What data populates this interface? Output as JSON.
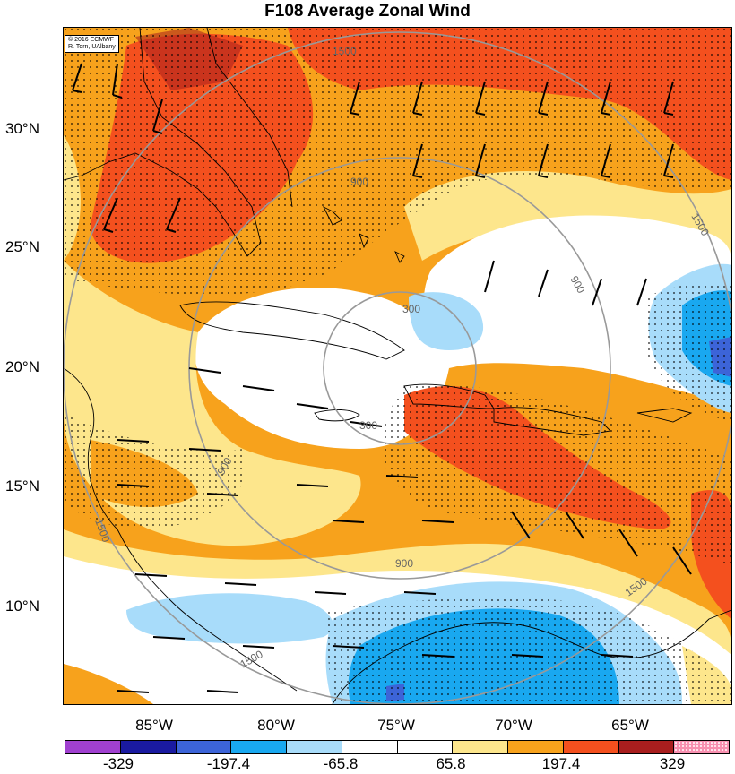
{
  "title": "F108 Average Zonal Wind",
  "credit": {
    "line1": "© 2016 ECMWF",
    "line2": "R. Torn, UAlbany"
  },
  "latitude_labels": [
    "30°N",
    "25°N",
    "20°N",
    "15°N",
    "10°N"
  ],
  "longitude_labels": [
    "85°W",
    "80°W",
    "75°W",
    "70°W",
    "65°W"
  ],
  "colorbar": {
    "colors": [
      "#a040d0",
      "#1a1aa0",
      "#3c64d8",
      "#19a8f0",
      "#a8dcfa",
      "#ffffff",
      "#ffffff",
      "#fde68c",
      "#f7a21c",
      "#f4501e",
      "#a81e1e",
      "#f890b0"
    ],
    "labels": [
      "-329",
      "-197.4",
      "-65.8",
      "65.8",
      "197.4",
      "329"
    ]
  },
  "contour_labels": [
    "300",
    "300",
    "900",
    "900",
    "900",
    "900",
    "1500",
    "1500",
    "1500",
    "1500",
    "1500"
  ],
  "colors": {
    "strong_easterly": "#f4501e",
    "easterly": "#f7a21c",
    "weak_easterly": "#fde68c",
    "westerly": "#a8dcfa",
    "strong_westerly": "#19a8f0",
    "range_rings": "#999999"
  }
}
